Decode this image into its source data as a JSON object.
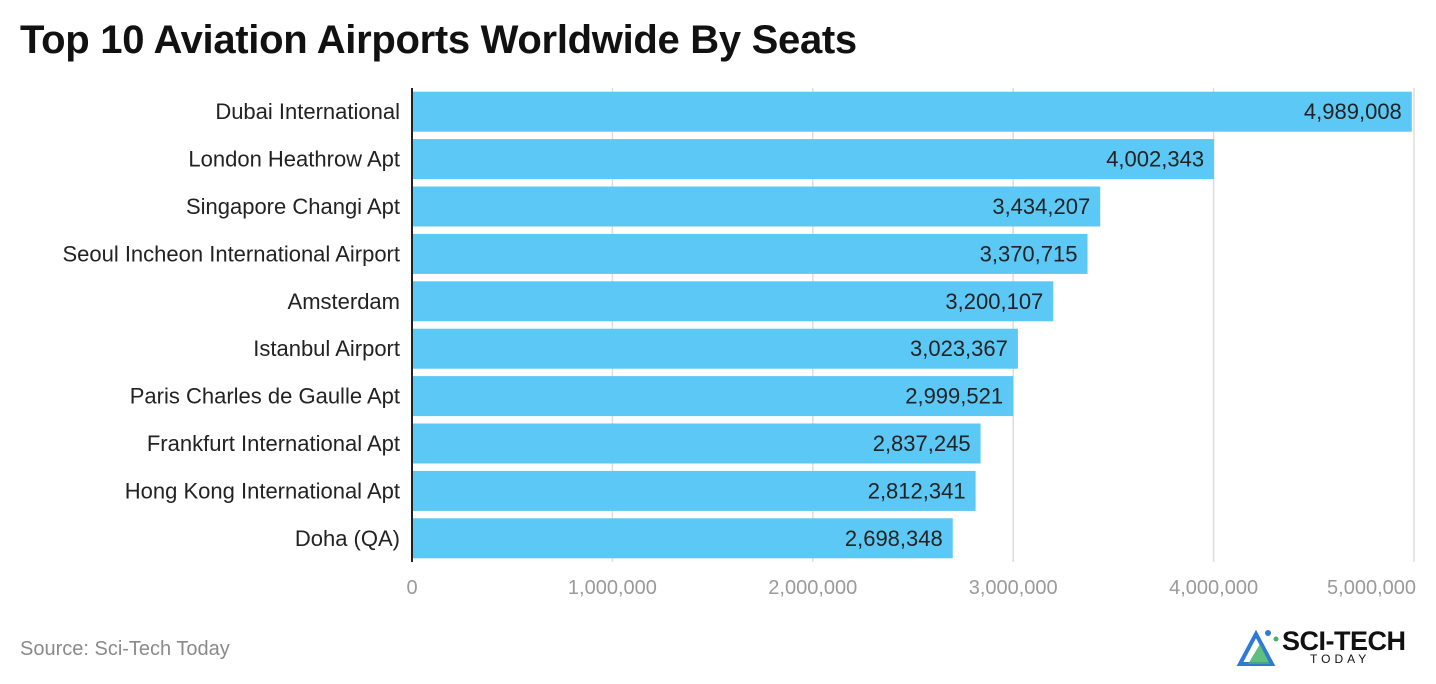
{
  "header": {
    "title": "Top 10 Aviation Airports Worldwide By Seats"
  },
  "footer": {
    "source": "Source: Sci-Tech Today"
  },
  "logo": {
    "main_text": "SCI-TECH",
    "sub_text": "TODAY",
    "icon": "mountain-triangle-icon"
  },
  "colors": {
    "bar": "#5bc8f5",
    "grid": "#dddddd",
    "axis": "#222222",
    "tick_text": "#9a9a9a",
    "logo_blue": "#2e7bd6",
    "logo_green": "#43b36a"
  },
  "chart_data": {
    "type": "bar",
    "orientation": "horizontal",
    "title": "Top 10 Aviation Airports Worldwide By Seats",
    "categories": [
      "Dubai International",
      "London Heathrow Apt",
      "Singapore Changi Apt",
      "Seoul Incheon International Airport",
      "Amsterdam",
      "Istanbul Airport",
      "Paris Charles de Gaulle Apt",
      "Frankfurt International Apt",
      "Hong Kong International Apt",
      "Doha (QA)"
    ],
    "values": [
      4989008,
      4002343,
      3434207,
      3370715,
      3200107,
      3023367,
      2999521,
      2837245,
      2812341,
      2698348
    ],
    "value_labels": [
      "4,989,008",
      "4,002,343",
      "3,434,207",
      "3,370,715",
      "3,200,107",
      "3,023,367",
      "2,999,521",
      "2,837,245",
      "2,812,341",
      "2,698,348"
    ],
    "xlim": [
      0,
      5000000
    ],
    "x_ticks": [
      0,
      1000000,
      2000000,
      3000000,
      4000000,
      5000000
    ],
    "x_tick_labels": [
      "0",
      "1,000,000",
      "2,000,000",
      "3,000,000",
      "4,000,000",
      "5,000,000"
    ],
    "grid": true,
    "xlabel": "",
    "ylabel": ""
  }
}
